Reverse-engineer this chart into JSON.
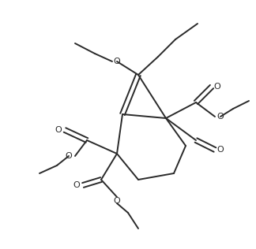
{
  "bg_color": "#ffffff",
  "line_color": "#2a2a2a",
  "line_width": 1.4,
  "figsize": [
    3.24,
    3.16
  ],
  "dpi": 100,
  "xlim": [
    0,
    324
  ],
  "ylim": [
    0,
    316
  ]
}
